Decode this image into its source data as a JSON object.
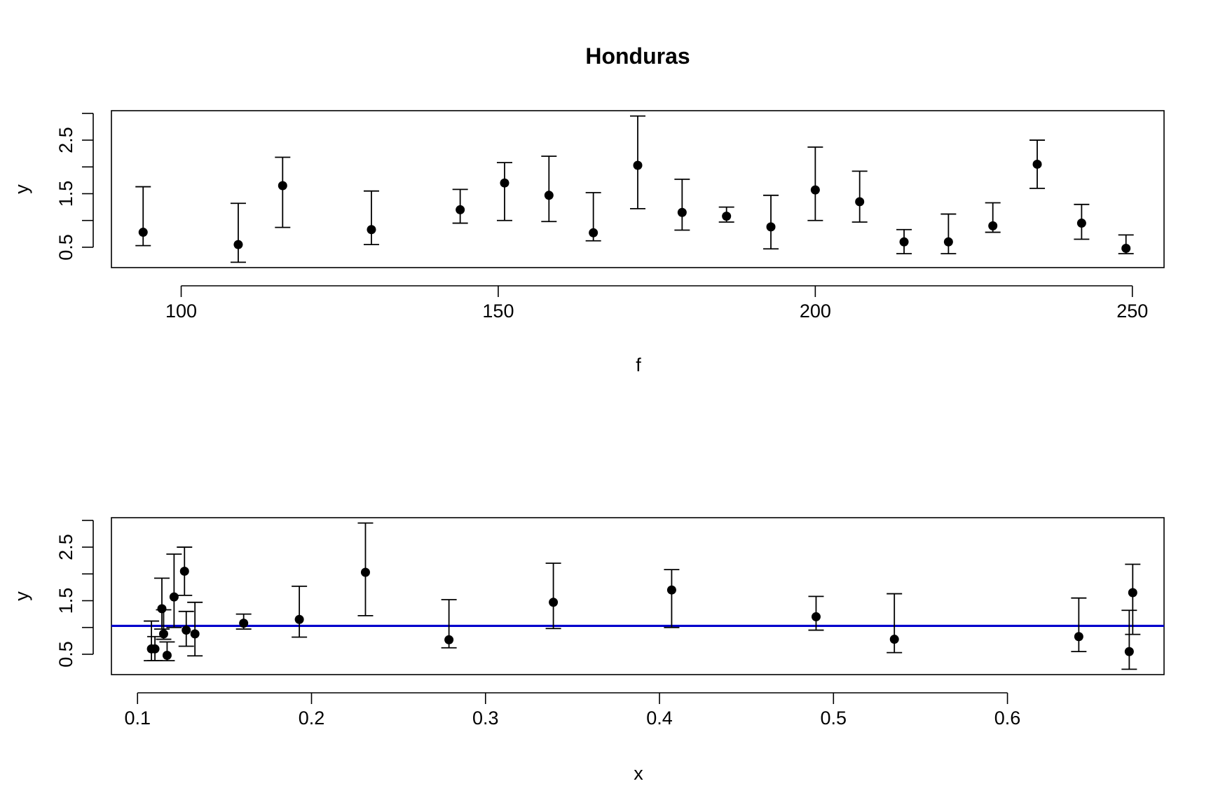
{
  "chart_data": [
    {
      "type": "scatter",
      "title": "Honduras",
      "xlabel": "f",
      "ylabel": "y",
      "xlim": [
        89,
        255
      ],
      "ylim": [
        0.12,
        3.05
      ],
      "xticks": [
        100,
        150,
        200,
        250
      ],
      "xtick_labels": [
        "100",
        "150",
        "200",
        "250"
      ],
      "yticks": [
        0.5,
        1.5,
        2.5
      ],
      "ytick_labels": [
        "0.5",
        "1.5",
        "2.5"
      ],
      "yaxis_extent": [
        0.5,
        3.0
      ],
      "grid": false,
      "points": [
        {
          "x": 94,
          "y": 0.78,
          "lo": 0.53,
          "hi": 1.63
        },
        {
          "x": 109,
          "y": 0.55,
          "lo": 0.22,
          "hi": 1.32
        },
        {
          "x": 116,
          "y": 1.65,
          "lo": 0.87,
          "hi": 2.18
        },
        {
          "x": 130,
          "y": 0.83,
          "lo": 0.55,
          "hi": 1.55
        },
        {
          "x": 144,
          "y": 1.2,
          "lo": 0.95,
          "hi": 1.58
        },
        {
          "x": 151,
          "y": 1.7,
          "lo": 1.0,
          "hi": 2.08
        },
        {
          "x": 158,
          "y": 1.47,
          "lo": 0.98,
          "hi": 2.2
        },
        {
          "x": 165,
          "y": 0.77,
          "lo": 0.62,
          "hi": 1.52
        },
        {
          "x": 172,
          "y": 2.03,
          "lo": 1.22,
          "hi": 2.95
        },
        {
          "x": 179,
          "y": 1.15,
          "lo": 0.82,
          "hi": 1.77
        },
        {
          "x": 186,
          "y": 1.08,
          "lo": 0.97,
          "hi": 1.25
        },
        {
          "x": 193,
          "y": 0.88,
          "lo": 0.47,
          "hi": 1.47
        },
        {
          "x": 200,
          "y": 1.57,
          "lo": 1.0,
          "hi": 2.37
        },
        {
          "x": 207,
          "y": 1.35,
          "lo": 0.97,
          "hi": 1.92
        },
        {
          "x": 214,
          "y": 0.6,
          "lo": 0.38,
          "hi": 0.83
        },
        {
          "x": 221,
          "y": 0.6,
          "lo": 0.38,
          "hi": 1.12
        },
        {
          "x": 228,
          "y": 0.9,
          "lo": 0.78,
          "hi": 1.33
        },
        {
          "x": 235,
          "y": 2.05,
          "lo": 1.6,
          "hi": 2.5
        },
        {
          "x": 242,
          "y": 0.95,
          "lo": 0.65,
          "hi": 1.3
        },
        {
          "x": 249,
          "y": 0.48,
          "lo": 0.38,
          "hi": 0.73
        }
      ]
    },
    {
      "type": "scatter",
      "title": "",
      "xlabel": "x",
      "ylabel": "y",
      "xlim": [
        0.085,
        0.69
      ],
      "ylim": [
        0.12,
        3.05
      ],
      "xticks": [
        0.1,
        0.2,
        0.3,
        0.4,
        0.5,
        0.6
      ],
      "xtick_labels": [
        "0.1",
        "0.2",
        "0.3",
        "0.4",
        "0.5",
        "0.6"
      ],
      "yticks": [
        0.5,
        1.5,
        2.5
      ],
      "ytick_labels": [
        "0.5",
        "1.5",
        "2.5"
      ],
      "yaxis_extent": [
        0.5,
        3.0
      ],
      "grid": false,
      "reference_line": {
        "y": 1.03,
        "color": "#0000cc"
      },
      "points": [
        {
          "x": 0.108,
          "y": 0.6,
          "lo": 0.38,
          "hi": 1.12
        },
        {
          "x": 0.11,
          "y": 0.6,
          "lo": 0.38,
          "hi": 0.83
        },
        {
          "x": 0.114,
          "y": 1.35,
          "lo": 0.97,
          "hi": 1.92
        },
        {
          "x": 0.115,
          "y": 0.88,
          "lo": 0.78,
          "hi": 1.33
        },
        {
          "x": 0.117,
          "y": 0.48,
          "lo": 0.38,
          "hi": 0.73
        },
        {
          "x": 0.121,
          "y": 1.57,
          "lo": 1.0,
          "hi": 2.37
        },
        {
          "x": 0.127,
          "y": 2.05,
          "lo": 1.6,
          "hi": 2.5
        },
        {
          "x": 0.128,
          "y": 0.95,
          "lo": 0.65,
          "hi": 1.3
        },
        {
          "x": 0.133,
          "y": 0.88,
          "lo": 0.47,
          "hi": 1.47
        },
        {
          "x": 0.161,
          "y": 1.08,
          "lo": 0.97,
          "hi": 1.25
        },
        {
          "x": 0.193,
          "y": 1.15,
          "lo": 0.82,
          "hi": 1.77
        },
        {
          "x": 0.231,
          "y": 2.03,
          "lo": 1.22,
          "hi": 2.95
        },
        {
          "x": 0.279,
          "y": 0.77,
          "lo": 0.62,
          "hi": 1.52
        },
        {
          "x": 0.339,
          "y": 1.47,
          "lo": 0.98,
          "hi": 2.2
        },
        {
          "x": 0.407,
          "y": 1.7,
          "lo": 1.0,
          "hi": 2.08
        },
        {
          "x": 0.49,
          "y": 1.2,
          "lo": 0.95,
          "hi": 1.58
        },
        {
          "x": 0.535,
          "y": 0.78,
          "lo": 0.53,
          "hi": 1.63
        },
        {
          "x": 0.641,
          "y": 0.83,
          "lo": 0.55,
          "hi": 1.55
        },
        {
          "x": 0.67,
          "y": 0.55,
          "lo": 0.22,
          "hi": 1.32
        },
        {
          "x": 0.672,
          "y": 1.65,
          "lo": 0.87,
          "hi": 2.18
        }
      ]
    }
  ]
}
